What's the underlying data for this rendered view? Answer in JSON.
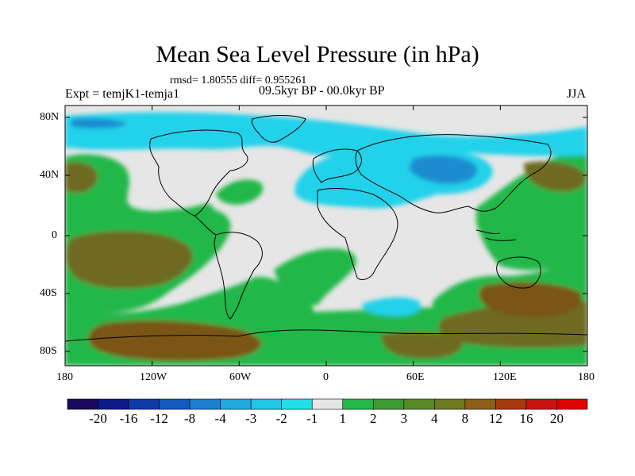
{
  "title": "Mean Sea Level Pressure (in hPa)",
  "stats": "rmsd= 1.80555 diff= 0.955261",
  "experiment": "Expt = temjK1-temja1",
  "period": "09.5kyr BP - 00.0kyr BP",
  "season": "JJA",
  "lat_labels": [
    "80N",
    "40N",
    "0",
    "40S",
    "80S"
  ],
  "lon_labels": [
    "180",
    "120W",
    "60W",
    "0",
    "60E",
    "120E",
    "180"
  ],
  "colorbar": {
    "labels": [
      "-20",
      "-16",
      "-12",
      "-8",
      "-4",
      "-3",
      "-2",
      "-1",
      "1",
      "2",
      "3",
      "4",
      "8",
      "12",
      "16",
      "20"
    ],
    "colors": [
      "#1a0a5e",
      "#0d1a8a",
      "#0f3aa8",
      "#1459c0",
      "#1e7fd0",
      "#20a8e0",
      "#22c6e8",
      "#22e0e8",
      "#e6e6e6",
      "#22b84a",
      "#3c9a30",
      "#5a8a28",
      "#6e7a20",
      "#8a6016",
      "#a83a10",
      "#c81410",
      "#e00000"
    ]
  },
  "colors": {
    "land_outline": "#000000",
    "frame": "#000000",
    "neutral": "#e6e6e6",
    "positive_light": "#22b84a",
    "positive_mid": "#3c9a30",
    "positive_dark": "#6e6a24",
    "positive_darker": "#7a5418",
    "negative_light": "#22d2ea",
    "negative_mid": "#1ab0dc",
    "negative_dark": "#1e8ccf"
  }
}
